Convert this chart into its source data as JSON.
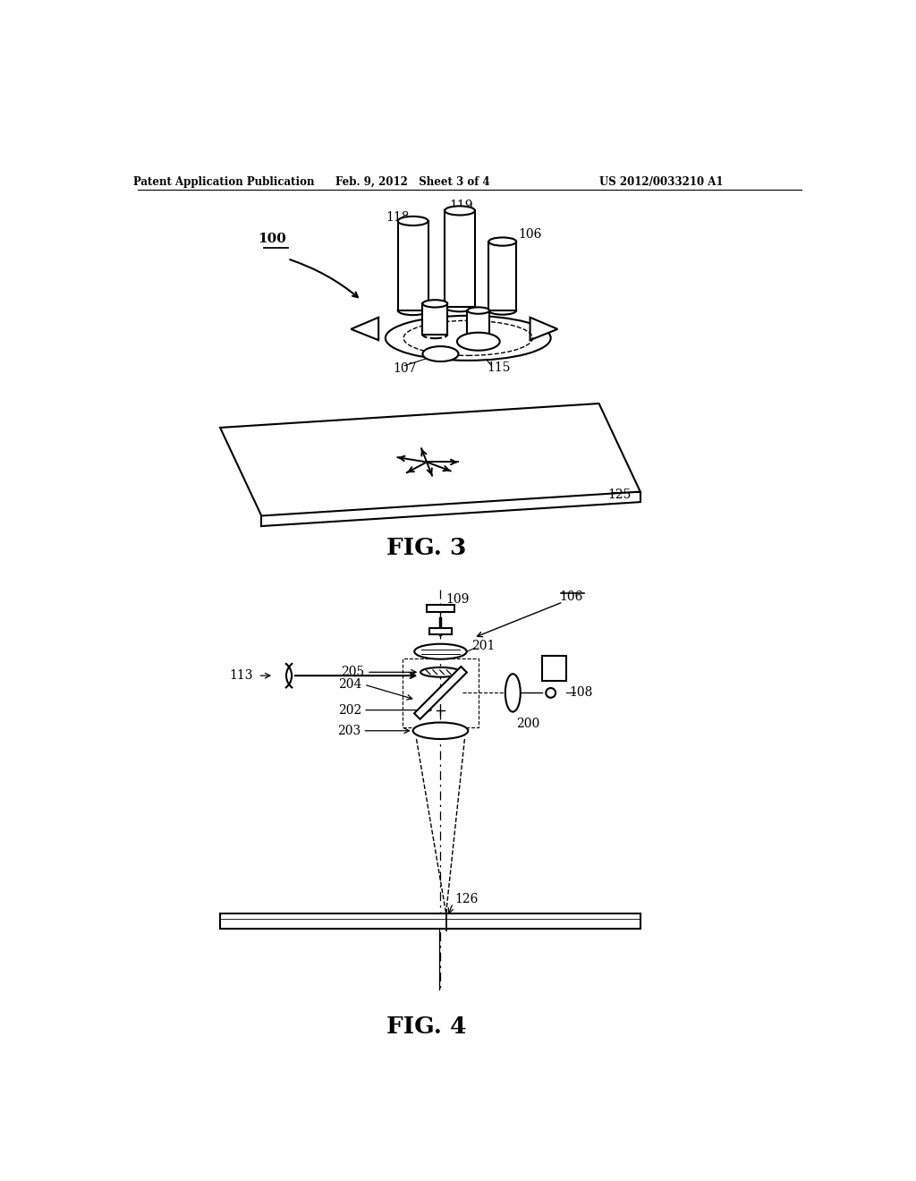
{
  "bg_color": "#ffffff",
  "header_left": "Patent Application Publication",
  "header_mid": "Feb. 9, 2012   Sheet 3 of 4",
  "header_right": "US 2012/0033210 A1",
  "fig3_label": "FIG. 3",
  "fig4_label": "FIG. 4",
  "label_100": "100",
  "label_118": "118",
  "label_119": "119",
  "label_106_top": "106",
  "label_107": "107",
  "label_115": "115",
  "label_125": "125",
  "label_109": "109",
  "label_106_bot": "106",
  "label_113": "113",
  "label_201": "201",
  "label_205": "205",
  "label_204": "204",
  "label_202": "202",
  "label_203": "203",
  "label_200": "200",
  "label_108": "108",
  "label_126": "126"
}
